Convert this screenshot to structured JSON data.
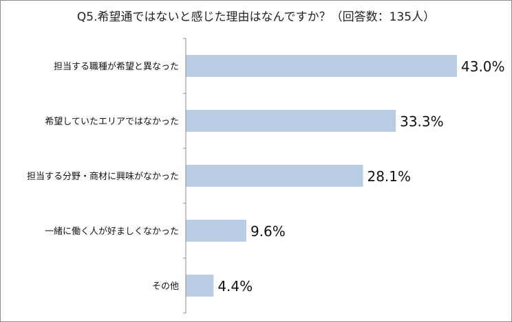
{
  "chart_data": {
    "type": "bar",
    "orientation": "horizontal",
    "title": "Q5.希望通ではないと感じた理由はなんですか？（回答数：135人）",
    "categories": [
      "担当する職種が希望と異なった",
      "希望していたエリアではなかった",
      "担当する分野・商材に興味がなかった",
      "一緒に働く人が好ましくなかった",
      "その他"
    ],
    "values": [
      43.0,
      33.3,
      28.1,
      9.6,
      4.4
    ],
    "value_labels": [
      "43.0%",
      "33.3%",
      "28.1%",
      "9.6%",
      "4.4%"
    ],
    "unit": "%",
    "xlim": [
      0,
      50
    ],
    "grid": false,
    "legend": "none",
    "bar_color": "#b9cde5",
    "axis_color": "#8c8c8c"
  }
}
